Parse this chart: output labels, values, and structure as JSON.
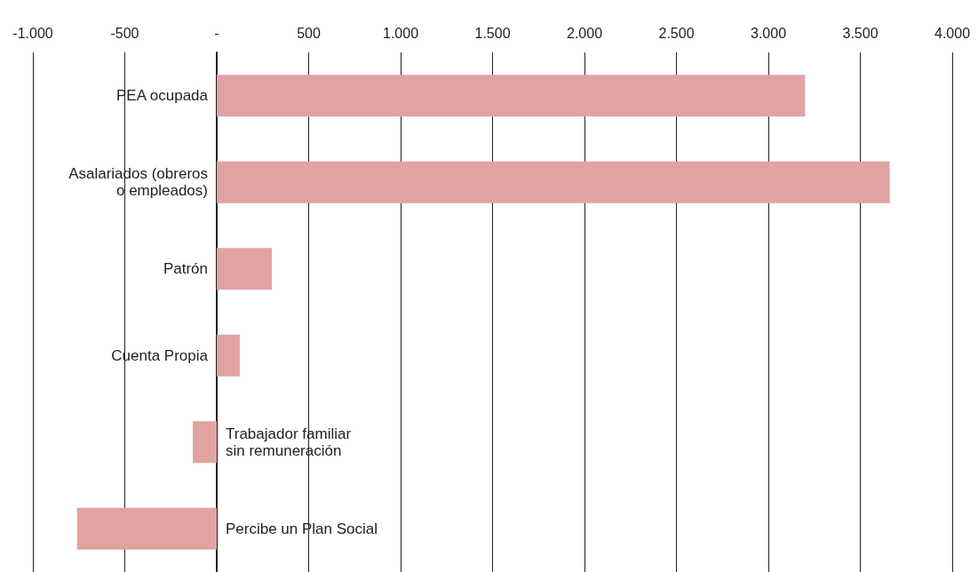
{
  "chart_data": {
    "type": "bar",
    "orientation": "horizontal",
    "categories": [
      "PEA ocupada",
      "Asalariados (obreros\no empleados)",
      "Patrón",
      "Cuenta Propia",
      "Trabajador familiar\nsin remuneración",
      "Percibe un Plan Social"
    ],
    "values": [
      3200,
      3660,
      300,
      125,
      -130,
      -760
    ],
    "color": "#e0a3a1",
    "xlim": [
      -1000,
      4000
    ],
    "xticks": [
      {
        "value": -1000,
        "label": "-1.000"
      },
      {
        "value": -500,
        "label": "-500"
      },
      {
        "value": 0,
        "label": "-"
      },
      {
        "value": 500,
        "label": "500"
      },
      {
        "value": 1000,
        "label": "1.000"
      },
      {
        "value": 1500,
        "label": "1.500"
      },
      {
        "value": 2000,
        "label": "2.000"
      },
      {
        "value": 2500,
        "label": "2.500"
      },
      {
        "value": 3000,
        "label": "3.000"
      },
      {
        "value": 3500,
        "label": "3.500"
      },
      {
        "value": 4000,
        "label": "4.000"
      }
    ],
    "grid": "x"
  }
}
